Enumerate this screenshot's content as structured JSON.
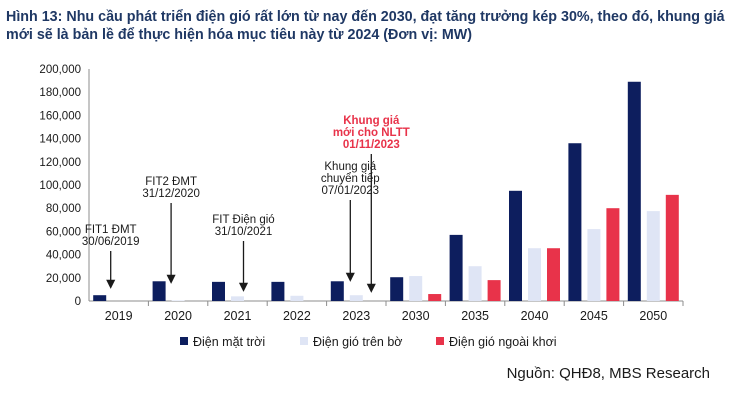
{
  "title": "Hình 13: Nhu cầu phát triển điện gió rất lớn từ nay đến 2030, đạt tăng trưởng kép 30%, theo đó, khung giá mới sẽ là bản lề để thực hiện hóa mục tiêu này từ 2024 (Đơn vị: MW)",
  "source": "Nguồn: QHĐ8, MBS Research",
  "chart_data": {
    "type": "bar",
    "categories": [
      "2019",
      "2020",
      "2021",
      "2022",
      "2023",
      "2030",
      "2035",
      "2040",
      "2045",
      "2050"
    ],
    "series": [
      {
        "name": "Điện mặt trời",
        "color": "#0d1e5e",
        "values": [
          5000,
          17000,
          16500,
          16500,
          17000,
          20500,
          57000,
          95000,
          136000,
          189000
        ]
      },
      {
        "name": "Điện gió trên bờ",
        "color": "#dfe5f5",
        "values": [
          0,
          500,
          4000,
          4500,
          5000,
          21500,
          30000,
          45500,
          62000,
          77500
        ]
      },
      {
        "name": "Điện gió ngoài khơi",
        "color": "#e8334a",
        "values": [
          0,
          0,
          0,
          0,
          0,
          6000,
          18000,
          45500,
          80000,
          91500
        ]
      }
    ],
    "ylim": [
      0,
      200000
    ],
    "yticks": [
      "0",
      "20,000",
      "40,000",
      "60,000",
      "80,000",
      "100,000",
      "120,000",
      "140,000",
      "160,000",
      "180,000",
      "200,000"
    ],
    "grid": false,
    "legend_position": "bottom",
    "annotations": [
      {
        "lines": [
          "FIT1 ĐMT",
          "30/06/2019"
        ],
        "category": "2019",
        "highlight": false
      },
      {
        "lines": [
          "FIT2 ĐMT",
          "31/12/2020"
        ],
        "category": "2020",
        "highlight": false
      },
      {
        "lines": [
          "FIT Điện gió",
          "31/10/2021"
        ],
        "category": "2021",
        "highlight": false
      },
      {
        "lines": [
          "Khung giá",
          "chuyển tiếp",
          "07/01/2023"
        ],
        "category": "2023",
        "highlight": false
      },
      {
        "lines": [
          "Khung giá",
          "mới cho NLTT",
          "01/11/2023"
        ],
        "category": "2023",
        "highlight": true
      }
    ]
  }
}
